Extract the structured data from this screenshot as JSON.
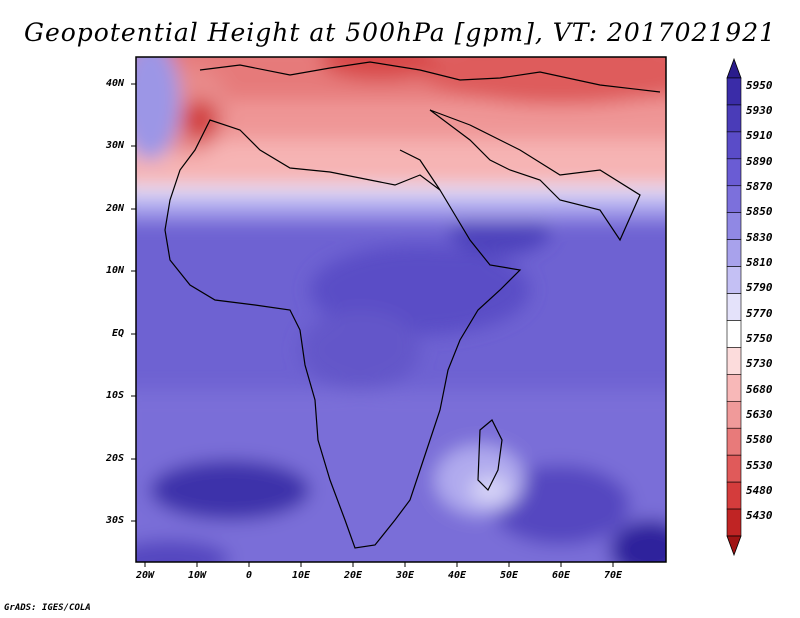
{
  "title": "Geopotential Height at 500hPa [gpm], VT: 2017021921",
  "lat_labels": [
    "40N",
    "30N",
    "20N",
    "10N",
    "EQ",
    "10S",
    "20S",
    "30S"
  ],
  "lon_labels": [
    "20W",
    "10W",
    "0",
    "10E",
    "20E",
    "30E",
    "40E",
    "50E",
    "60E",
    "70E"
  ],
  "colorbar": {
    "levels": [
      "5950",
      "5930",
      "5910",
      "5890",
      "5870",
      "5850",
      "5830",
      "5810",
      "5790",
      "5770",
      "5750",
      "5730",
      "5680",
      "5630",
      "5580",
      "5530",
      "5480",
      "5430"
    ],
    "colors_top_to_bottom": [
      "#2a1c8c",
      "#3a2ca8",
      "#4a3cb8",
      "#5a4cc8",
      "#6a5cd4",
      "#7c70dc",
      "#9088e4",
      "#a8a2ec",
      "#c4c0f4",
      "#e4e2fa",
      "#ffffff",
      "#fcdcdc",
      "#f8b8b8",
      "#f09a9a",
      "#e87a7a",
      "#e05a5a",
      "#d43c3c",
      "#c02424",
      "#a01414"
    ]
  },
  "credit": "GrADS: IGES/COLA"
}
